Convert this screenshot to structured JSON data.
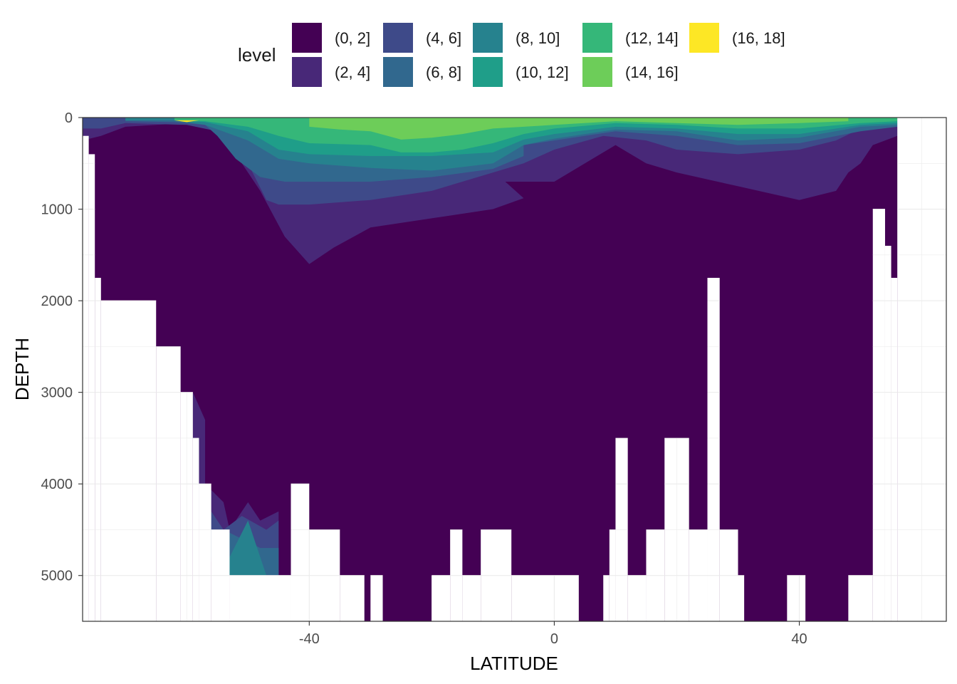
{
  "chart_data": {
    "type": "filled-contour",
    "xlabel": "LATITUDE",
    "ylabel": "DEPTH",
    "xlim": [
      -77,
      64
    ],
    "ylim": [
      5500,
      0
    ],
    "y_reversed": true,
    "x_ticks": [
      -40,
      0,
      40
    ],
    "x_tick_labels": [
      "-40",
      "0",
      "40"
    ],
    "y_ticks": [
      0,
      1000,
      2000,
      3000,
      4000,
      5000
    ],
    "y_tick_labels": [
      "0",
      "1000",
      "2000",
      "3000",
      "4000",
      "5000"
    ],
    "grid": true,
    "legend": {
      "title": "level",
      "position": "top",
      "items": [
        {
          "label": "(0, 2]",
          "color": "#440154"
        },
        {
          "label": "(2, 4]",
          "color": "#482878"
        },
        {
          "label": "(4, 6]",
          "color": "#3E4A89"
        },
        {
          "label": "(6, 8]",
          "color": "#31688E"
        },
        {
          "label": "(8, 10]",
          "color": "#26828E"
        },
        {
          "label": "(10, 12]",
          "color": "#1F9E89"
        },
        {
          "label": "(12, 14]",
          "color": "#35B779"
        },
        {
          "label": "(14, 16]",
          "color": "#6DCD59"
        },
        {
          "label": "(16, 18]",
          "color": "#FDE725"
        }
      ]
    },
    "bottom_by_latitude": [
      {
        "lat": -77,
        "depth": 200
      },
      {
        "lat": -76,
        "depth": 400
      },
      {
        "lat": -75,
        "depth": 1750
      },
      {
        "lat": -74,
        "depth": 2000
      },
      {
        "lat": -65,
        "depth": 2500
      },
      {
        "lat": -61,
        "depth": 3000
      },
      {
        "lat": -59,
        "depth": 3500
      },
      {
        "lat": -58,
        "depth": 4000
      },
      {
        "lat": -56,
        "depth": 4500
      },
      {
        "lat": -53,
        "depth": 5000
      },
      {
        "lat": -43,
        "depth": 4000
      },
      {
        "lat": -40,
        "depth": 4500
      },
      {
        "lat": -35,
        "depth": 5000
      },
      {
        "lat": -31,
        "depth": 5500
      },
      {
        "lat": -30,
        "depth": 5000
      },
      {
        "lat": -28,
        "depth": 5500
      },
      {
        "lat": -20,
        "depth": 5000
      },
      {
        "lat": -17,
        "depth": 4500
      },
      {
        "lat": -15,
        "depth": 5000
      },
      {
        "lat": -12,
        "depth": 4500
      },
      {
        "lat": -7,
        "depth": 5000
      },
      {
        "lat": 4,
        "depth": 5500
      },
      {
        "lat": 8,
        "depth": 5000
      },
      {
        "lat": 9,
        "depth": 4500
      },
      {
        "lat": 10,
        "depth": 3500
      },
      {
        "lat": 12,
        "depth": 5000
      },
      {
        "lat": 15,
        "depth": 4500
      },
      {
        "lat": 18,
        "depth": 3500
      },
      {
        "lat": 22,
        "depth": 4500
      },
      {
        "lat": 25,
        "depth": 1750
      },
      {
        "lat": 27,
        "depth": 4500
      },
      {
        "lat": 30,
        "depth": 5000
      },
      {
        "lat": 31,
        "depth": 5500
      },
      {
        "lat": 38,
        "depth": 5000
      },
      {
        "lat": 41,
        "depth": 5500
      },
      {
        "lat": 48,
        "depth": 5000
      },
      {
        "lat": 52,
        "depth": 1000
      },
      {
        "lat": 54,
        "depth": 1400
      },
      {
        "lat": 55,
        "depth": 1750
      },
      {
        "lat": 56,
        "depth": 0
      }
    ],
    "upper_boundary_depth_by_level": [
      {
        "level": "(2, 4]",
        "points": [
          [
            -77,
            250
          ],
          [
            -74,
            200
          ],
          [
            -70,
            100
          ],
          [
            -60,
            60
          ],
          [
            -55,
            100
          ],
          [
            -48,
            800
          ],
          [
            -44,
            1300
          ],
          [
            -40,
            1600
          ],
          [
            -36,
            1420
          ],
          [
            -30,
            1200
          ],
          [
            -20,
            1100
          ],
          [
            -10,
            1000
          ],
          [
            -5,
            880
          ],
          [
            -8,
            700
          ],
          [
            0,
            700
          ],
          [
            5,
            500
          ],
          [
            10,
            300
          ],
          [
            15,
            500
          ],
          [
            20,
            600
          ],
          [
            30,
            750
          ],
          [
            40,
            900
          ],
          [
            46,
            800
          ],
          [
            48,
            600
          ],
          [
            50,
            500
          ],
          [
            52,
            300
          ],
          [
            56,
            200
          ],
          [
            56,
            0
          ],
          [
            64,
            0
          ]
        ]
      },
      {
        "level": "(4, 6]",
        "points": [
          [
            -77,
            120
          ],
          [
            -74,
            120
          ],
          [
            -70,
            60
          ],
          [
            -60,
            80
          ],
          [
            -55,
            150
          ],
          [
            -50,
            500
          ],
          [
            -47,
            900
          ],
          [
            -45,
            950
          ],
          [
            -40,
            950
          ],
          [
            -30,
            900
          ],
          [
            -20,
            800
          ],
          [
            -10,
            600
          ],
          [
            -5,
            500
          ],
          [
            0,
            350
          ],
          [
            8,
            200
          ],
          [
            15,
            250
          ],
          [
            20,
            350
          ],
          [
            30,
            400
          ],
          [
            40,
            350
          ],
          [
            46,
            250
          ],
          [
            50,
            120
          ],
          [
            56,
            100
          ],
          [
            56,
            0
          ],
          [
            64,
            0
          ]
        ]
      },
      {
        "level": "(6, 8]",
        "points": [
          [
            -70,
            40
          ],
          [
            -62,
            50
          ],
          [
            -57,
            80
          ],
          [
            -55,
            200
          ],
          [
            -52,
            450
          ],
          [
            -48,
            650
          ],
          [
            -44,
            700
          ],
          [
            -40,
            700
          ],
          [
            -30,
            700
          ],
          [
            -20,
            650
          ],
          [
            -10,
            560
          ],
          [
            -5,
            420
          ],
          [
            -5,
            300
          ],
          [
            0,
            250
          ],
          [
            10,
            150
          ],
          [
            20,
            200
          ],
          [
            30,
            300
          ],
          [
            40,
            280
          ],
          [
            50,
            150
          ],
          [
            56,
            100
          ]
        ]
      },
      {
        "level": "(8, 10]",
        "points": [
          [
            -70,
            30
          ],
          [
            -62,
            30
          ],
          [
            -57,
            80
          ],
          [
            -50,
            250
          ],
          [
            -45,
            450
          ],
          [
            -40,
            500
          ],
          [
            -30,
            550
          ],
          [
            -20,
            580
          ],
          [
            -10,
            500
          ],
          [
            -5,
            300
          ],
          [
            0,
            230
          ],
          [
            10,
            130
          ],
          [
            20,
            150
          ],
          [
            30,
            250
          ],
          [
            40,
            220
          ],
          [
            50,
            100
          ],
          [
            56,
            80
          ]
        ]
      },
      {
        "level": "(10, 12]",
        "points": [
          [
            -62,
            30
          ],
          [
            -57,
            50
          ],
          [
            -50,
            150
          ],
          [
            -45,
            350
          ],
          [
            -40,
            400
          ],
          [
            -30,
            420
          ],
          [
            -20,
            420
          ],
          [
            -10,
            380
          ],
          [
            -5,
            240
          ],
          [
            0,
            180
          ],
          [
            10,
            100
          ],
          [
            20,
            120
          ],
          [
            30,
            180
          ],
          [
            40,
            180
          ],
          [
            50,
            80
          ],
          [
            56,
            60
          ]
        ]
      },
      {
        "level": "(12, 14]",
        "points": [
          [
            -62,
            30
          ],
          [
            -57,
            40
          ],
          [
            -50,
            100
          ],
          [
            -45,
            200
          ],
          [
            -40,
            280
          ],
          [
            -30,
            300
          ],
          [
            -25,
            380
          ],
          [
            -20,
            380
          ],
          [
            -15,
            350
          ],
          [
            -10,
            280
          ],
          [
            -5,
            180
          ],
          [
            0,
            120
          ],
          [
            10,
            60
          ],
          [
            20,
            80
          ],
          [
            30,
            120
          ],
          [
            40,
            120
          ],
          [
            50,
            60
          ],
          [
            56,
            40
          ]
        ]
      },
      {
        "level": "(14, 16]",
        "points": [
          [
            -40,
            100
          ],
          [
            -35,
            130
          ],
          [
            -30,
            150
          ],
          [
            -25,
            240
          ],
          [
            -20,
            220
          ],
          [
            -15,
            180
          ],
          [
            -10,
            120
          ],
          [
            -5,
            100
          ],
          [
            0,
            80
          ],
          [
            10,
            40
          ],
          [
            20,
            60
          ],
          [
            30,
            80
          ],
          [
            40,
            60
          ],
          [
            48,
            40
          ]
        ]
      },
      {
        "level": "(16, 18]",
        "points": [
          [
            -62,
            30
          ],
          [
            -60,
            50
          ],
          [
            -58,
            30
          ]
        ]
      }
    ],
    "deep_patches": [
      {
        "level": "(2, 4]",
        "points": [
          [
            -59,
            3000
          ],
          [
            -57,
            3300
          ],
          [
            -57,
            4000
          ],
          [
            -54,
            4200
          ],
          [
            -53,
            4500
          ],
          [
            -50,
            4200
          ],
          [
            -48,
            4400
          ],
          [
            -45,
            4300
          ],
          [
            -45,
            5000
          ],
          [
            -53,
            5000
          ],
          [
            -57,
            4800
          ],
          [
            -59,
            4000
          ]
        ]
      },
      {
        "level": "(4, 6]",
        "points": [
          [
            -58,
            4200
          ],
          [
            -56,
            4300
          ],
          [
            -54,
            4500
          ],
          [
            -51,
            4350
          ],
          [
            -47,
            4500
          ],
          [
            -45,
            4400
          ],
          [
            -45,
            5000
          ],
          [
            -52,
            5000
          ],
          [
            -56,
            4800
          ]
        ]
      },
      {
        "level": "(6, 8]",
        "points": [
          [
            -54,
            4500
          ],
          [
            -51,
            4600
          ],
          [
            -48,
            4700
          ],
          [
            -45,
            4700
          ],
          [
            -45,
            5000
          ],
          [
            -53,
            5000
          ]
        ]
      },
      {
        "level": "(8, 10]",
        "points": [
          [
            -53,
            4800
          ],
          [
            -50,
            4400
          ],
          [
            -48,
            4800
          ],
          [
            -47,
            5000
          ],
          [
            -53,
            5000
          ]
        ]
      }
    ]
  }
}
